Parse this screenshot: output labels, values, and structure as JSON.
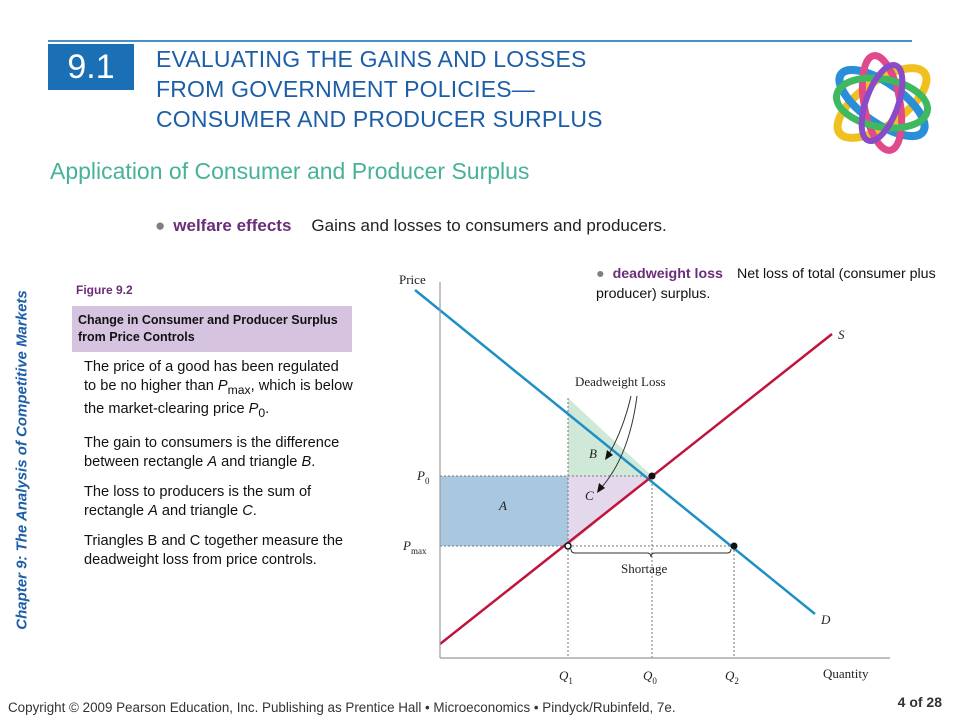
{
  "header": {
    "section_number": "9.1",
    "title_lines": [
      "EVALUATING THE GAINS AND LOSSES",
      "FROM GOVERNMENT POLICIES—",
      "CONSUMER AND PRODUCER SURPLUS"
    ]
  },
  "subtitle": "Application of Consumer and Producer Surplus",
  "bullet": {
    "term": "welfare effects",
    "definition": "Gains and losses to consumers and producers."
  },
  "side_label": "Chapter 9:  The Analysis of Competitive Markets",
  "figure": {
    "label": "Figure 9.2",
    "caption": "Change in Consumer and Producer Surplus from Price Controls",
    "p1_a": "The price of a good has been regulated to be no higher than ",
    "p1_var": "P",
    "p1_sub": "max",
    "p1_b": ", which is below the market-clearing price ",
    "p1_var2": "P",
    "p1_sub2": "0",
    "p1_end": ".",
    "p2_a": "The gain to consumers is the difference between rectangle ",
    "p2_A": "A",
    "p2_b": " and triangle ",
    "p2_B": "B",
    "p2_end": ".",
    "p3_a": "The loss to producers is the sum of rectangle ",
    "p3_A": "A",
    "p3_b": " and triangle ",
    "p3_C": "C",
    "p3_end": ".",
    "p4": "Triangles B and C together measure the deadweight loss from price controls."
  },
  "deadweight_bullet": {
    "term": "deadweight loss",
    "definition": "Net loss of total (consumer plus producer) surplus."
  },
  "diagram": {
    "y_axis_label": "Price",
    "x_axis_label": "Quantity",
    "supply_label": "S",
    "demand_label": "D",
    "p0_label": "P",
    "p0_sub": "0",
    "pmax_label": "P",
    "pmax_sub": "max",
    "q1_label": "Q",
    "q1_sub": "1",
    "q0_label": "Q",
    "q0_sub": "0",
    "q2_label": "Q",
    "q2_sub": "2",
    "region_a": "A",
    "region_b": "B",
    "region_c": "C",
    "deadweight_label": "Deadweight Loss",
    "shortage_label": "Shortage",
    "colors": {
      "supply": "#c0143c",
      "demand": "#1f8fc6",
      "rect_a": "#a9c8e0",
      "tri_b": "#cfe8d8",
      "tri_c": "#e3d8ec"
    }
  },
  "footer": {
    "copyright": "Copyright © 2009 Pearson Education, Inc. Publishing as Prentice Hall  •  Microeconomics  •  Pindyck/Rubinfeld, 7e.",
    "page": "4 of 28"
  }
}
